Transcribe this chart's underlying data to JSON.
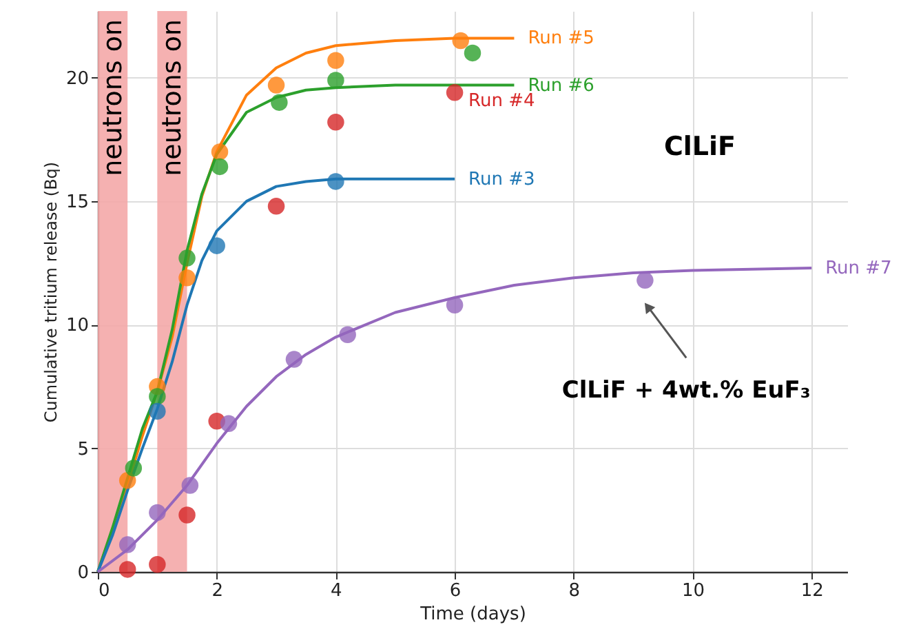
{
  "chart_data": {
    "type": "scatter",
    "xlabel": "Time (days)",
    "ylabel": "Cumulative tritium release (Bq)",
    "xlim": [
      0,
      12.6
    ],
    "ylim": [
      0,
      22.7
    ],
    "xticks": [
      0,
      2,
      4,
      6,
      8,
      10,
      12
    ],
    "yticks": [
      0,
      5,
      10,
      15,
      20
    ],
    "grid": true,
    "marker": "circle",
    "bands": [
      {
        "axis": "x",
        "from": 0,
        "to": 0.5,
        "label": "neutrons on",
        "color": "#f4a9a8"
      },
      {
        "axis": "x",
        "from": 1,
        "to": 1.5,
        "label": "neutrons on",
        "color": "#f4a9a8"
      }
    ],
    "annotations": [
      "ClLiF",
      "ClLiF + 4wt.% EuF₃"
    ],
    "series": [
      {
        "type": "line",
        "name": "Run #5",
        "color": "#ff7f0e",
        "marker": "none",
        "x": [
          0,
          0.5,
          0.75,
          1,
          1.25,
          1.5,
          1.75,
          2,
          2.5,
          3,
          3.5,
          4,
          5,
          6,
          7
        ],
        "values": [
          0,
          3.5,
          5.5,
          7.3,
          9.5,
          12.5,
          15.2,
          17,
          19.3,
          20.4,
          21,
          21.3,
          21.5,
          21.6,
          21.6
        ]
      },
      {
        "type": "line",
        "name": "Run #6",
        "color": "#2ca02c",
        "marker": "none",
        "x": [
          0,
          0.25,
          0.5,
          0.75,
          1,
          1.25,
          1.5,
          1.75,
          2,
          2.5,
          3,
          3.5,
          4,
          5,
          7
        ],
        "values": [
          0,
          1.8,
          3.8,
          5.8,
          7.3,
          9.8,
          13,
          15.3,
          16.9,
          18.6,
          19.2,
          19.5,
          19.6,
          19.7,
          19.7
        ]
      },
      {
        "type": "line",
        "name": "Run #3",
        "color": "#1f77b4",
        "marker": "none",
        "x": [
          0,
          0.25,
          0.5,
          0.75,
          1,
          1.25,
          1.5,
          1.75,
          2,
          2.5,
          3,
          3.5,
          4,
          6
        ],
        "values": [
          0,
          1.5,
          3.3,
          5,
          6.6,
          8.5,
          10.8,
          12.6,
          13.8,
          15,
          15.6,
          15.8,
          15.9,
          15.9
        ]
      },
      {
        "type": "line",
        "name": "Run #7",
        "color": "#9467bd",
        "marker": "none",
        "x": [
          0,
          0.5,
          1,
          1.5,
          2,
          2.5,
          3,
          3.5,
          4,
          5,
          6,
          7,
          8,
          9,
          10,
          12
        ],
        "values": [
          0,
          0.9,
          2.1,
          3.5,
          5.2,
          6.7,
          7.9,
          8.8,
          9.5,
          10.5,
          11.1,
          11.6,
          11.9,
          12.1,
          12.2,
          12.3
        ]
      },
      {
        "color": "#ff7f0e",
        "x": [
          0.5,
          1,
          1.5,
          2.05,
          3,
          4,
          6.1
        ],
        "values": [
          3.7,
          7.5,
          11.9,
          17,
          19.7,
          20.7,
          21.5
        ]
      },
      {
        "color": "#2ca02c",
        "x": [
          0.6,
          1,
          1.5,
          2.05,
          3.05,
          4,
          6.3
        ],
        "values": [
          4.2,
          7.1,
          12.7,
          16.4,
          19,
          19.9,
          21
        ]
      },
      {
        "color": "#1f77b4",
        "x": [
          1,
          2,
          4
        ],
        "values": [
          6.5,
          13.2,
          15.8
        ]
      },
      {
        "name": "Run #4",
        "color": "#d62728",
        "x": [
          0.5,
          1,
          1.5,
          2,
          3,
          4,
          6
        ],
        "values": [
          0.1,
          0.3,
          2.3,
          6.1,
          14.8,
          18.2,
          19.4
        ]
      },
      {
        "color": "#9467bd",
        "x": [
          0.5,
          1,
          1.55,
          2.2,
          3.3,
          4.2,
          6,
          9.2
        ],
        "values": [
          1.1,
          2.4,
          3.5,
          6,
          8.6,
          9.6,
          10.8,
          11.8
        ]
      }
    ]
  }
}
